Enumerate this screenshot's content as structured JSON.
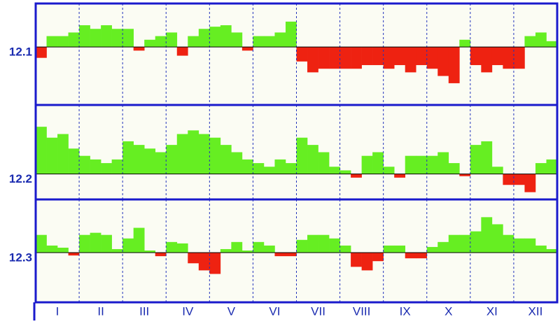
{
  "chart_data": {
    "type": "bar",
    "months": [
      "I",
      "II",
      "III",
      "IV",
      "V",
      "VI",
      "VII",
      "VIII",
      "IX",
      "X",
      "XI",
      "XII"
    ],
    "positive_color": "#66ee22",
    "negative_color": "#ee2211",
    "frame_color": "#1a1acc",
    "panels": [
      {
        "name": "12.1",
        "ylim": [
          -8,
          6
        ],
        "values": [
          -1.5,
          1.5,
          1.5,
          2,
          3,
          2.5,
          3,
          2.5,
          2.5,
          -0.5,
          1,
          1.5,
          2,
          -1.2,
          1.5,
          2.5,
          2.8,
          3,
          2,
          -0.5,
          1.5,
          1.5,
          2,
          3.5,
          -2,
          -3.5,
          -3,
          -3,
          -3,
          -3,
          -2.5,
          -2.5,
          -3,
          -2.5,
          -3.5,
          -2.5,
          -3,
          -4,
          -5,
          1,
          -2.5,
          -3.5,
          -2.5,
          -3,
          -3,
          1.5,
          2,
          0.8
        ]
      },
      {
        "name": "12.2",
        "ylim": [
          -3.5,
          9.5
        ],
        "values": [
          6.5,
          5,
          5.5,
          3.5,
          2.5,
          2,
          1.5,
          2,
          4.5,
          4,
          3.5,
          3,
          4,
          5.5,
          6,
          5.5,
          5,
          4,
          3,
          2,
          1.5,
          1,
          2,
          1.5,
          5,
          4,
          3,
          1,
          0.5,
          -0.5,
          2.5,
          3,
          1,
          -0.5,
          2.5,
          2.5,
          2.5,
          3,
          1.5,
          -0.3,
          4,
          4.5,
          1,
          -1.5,
          -1.5,
          -2.5,
          1.5,
          2
        ]
      },
      {
        "name": "12.3",
        "ylim": [
          -7,
          7.5
        ],
        "values": [
          2.5,
          1,
          0.7,
          -0.4,
          2.5,
          2.8,
          2.5,
          0.5,
          2,
          3.5,
          0.3,
          -0.5,
          1.5,
          1.3,
          -1.5,
          -2.5,
          -3,
          0.5,
          1.5,
          0.3,
          1.5,
          1,
          -0.5,
          -0.5,
          1.8,
          2.5,
          2.5,
          2,
          1,
          -2,
          -2.5,
          -1.2,
          1,
          1,
          -0.8,
          -0.8,
          0.8,
          1.5,
          2.5,
          2.5,
          3,
          5,
          4,
          2.5,
          2,
          2,
          1,
          0.5
        ]
      }
    ]
  }
}
